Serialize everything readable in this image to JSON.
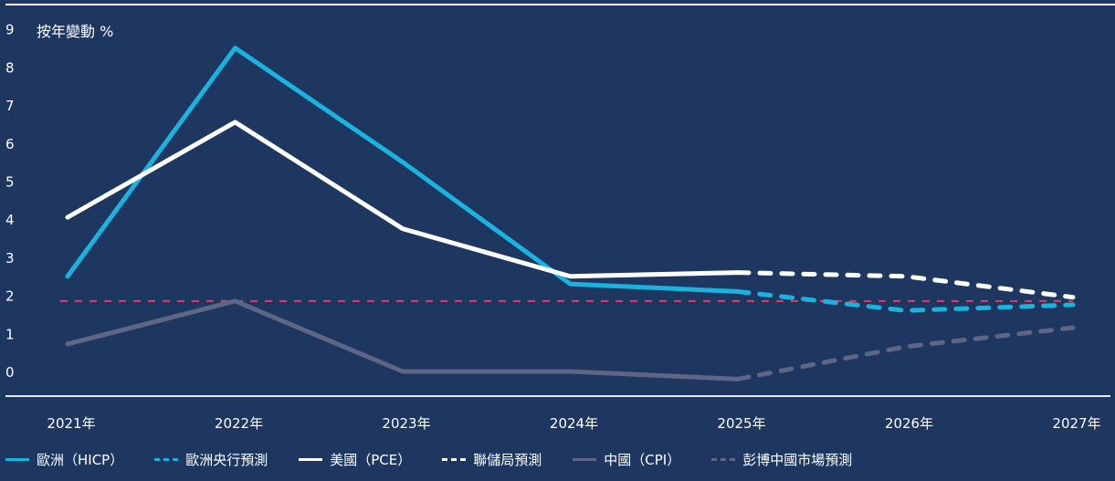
{
  "chart_data": {
    "type": "line",
    "ylabel": "按年變動 %",
    "ylim": [
      0,
      9
    ],
    "yticks": [
      "0",
      "1",
      "2",
      "3",
      "4",
      "5",
      "6",
      "7",
      "8",
      "9"
    ],
    "categories": [
      "2021年",
      "2022年",
      "2023年",
      "2024年",
      "2025年",
      "2026年",
      "2027年"
    ],
    "grid": false,
    "legend_position": "bottom",
    "reference_line": {
      "value": 1.85,
      "color": "#e03c5c",
      "style": "dashed"
    },
    "series": [
      {
        "name": "歐洲（HICP）",
        "color": "#1ab3e0",
        "style": "solid",
        "values": [
          2.5,
          8.5,
          5.5,
          2.3,
          2.1,
          null,
          null
        ]
      },
      {
        "name": "歐洲央行預測",
        "color": "#1ab3e0",
        "style": "dashed",
        "values": [
          null,
          null,
          null,
          null,
          2.1,
          1.6,
          1.75
        ]
      },
      {
        "name": "美國（PCE）",
        "color": "#ffffff",
        "style": "solid",
        "values": [
          4.05,
          6.55,
          3.75,
          2.5,
          2.6,
          null,
          null
        ]
      },
      {
        "name": "聯儲局預測",
        "color": "#ffffff",
        "style": "dashed",
        "values": [
          null,
          null,
          null,
          null,
          2.6,
          2.5,
          1.95
        ]
      },
      {
        "name": "中國（CPI）",
        "color": "#5f6584",
        "style": "solid",
        "values": [
          0.72,
          1.85,
          0.0,
          0.0,
          -0.2,
          null,
          null
        ]
      },
      {
        "name": "彭博中國市場預測",
        "color": "#5f6584",
        "style": "dashed",
        "values": [
          null,
          null,
          null,
          null,
          -0.2,
          0.65,
          1.15
        ]
      }
    ]
  }
}
